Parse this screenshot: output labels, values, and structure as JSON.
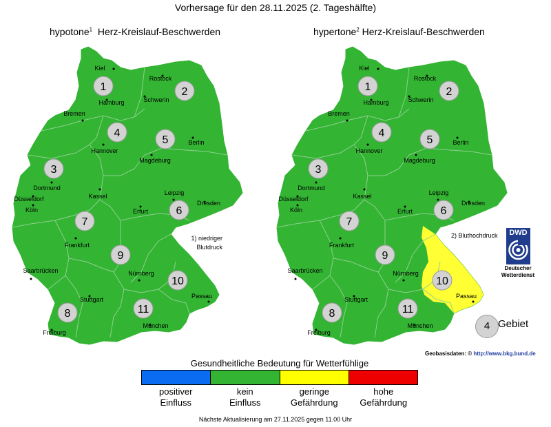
{
  "title": "Vorhersage für den 28.11.2025 (2. Tageshälfte)",
  "left_map": {
    "subtitle_main": "hypotone",
    "subtitle_sup": "1",
    "subtitle_rest": "Herz-Kreislauf-Beschwerden",
    "note_line1": "1) niedriger",
    "note_line2": "Blutdruck"
  },
  "right_map": {
    "subtitle_main": "hypertone",
    "subtitle_sup": "2",
    "subtitle_rest": "Herz-Kreislauf-Beschwerden",
    "note": "2) Bluthochdruck"
  },
  "regions": [
    "1",
    "2",
    "3",
    "4",
    "5",
    "6",
    "7",
    "8",
    "9",
    "10",
    "11"
  ],
  "cities": [
    "Kiel",
    "Rostock",
    "Hamburg",
    "Schwerin",
    "Bremen",
    "Hannover",
    "Berlin",
    "Magdeburg",
    "Dortmund",
    "Düsseldorf",
    "Köln",
    "Kassel",
    "Leipzig",
    "Dresden",
    "Erfurt",
    "Frankfurt",
    "Nürnberg",
    "Saarbrücken",
    "Stuttgart",
    "Passau",
    "Freiburg",
    "München"
  ],
  "dwd": {
    "logo": "DWD",
    "line1": "Deutscher",
    "line2": "Wetterdienst"
  },
  "gebiet": {
    "number": "4",
    "label": "Gebiet"
  },
  "geobasis": {
    "label": "Geobasisdaten: ©",
    "url": "http://www.bkg.bund.de"
  },
  "legend": {
    "title": "Gesundheitliche Bedeutung für Wetterfühlige",
    "items": [
      {
        "line1": "positiver",
        "line2": "Einfluss",
        "color": "#0a6cf0"
      },
      {
        "line1": "kein",
        "line2": "Einfluss",
        "color": "#33b433"
      },
      {
        "line1": "geringe",
        "line2": "Gefährdung",
        "color": "#ffff00"
      },
      {
        "line1": "hohe",
        "line2": "Gefährdung",
        "color": "#ee0000"
      }
    ]
  },
  "map_colors": {
    "green": "#33b433",
    "yellow": "#ffff33",
    "border": "#8fd08f"
  },
  "region_levels": {
    "left": [
      "kein",
      "kein",
      "kein",
      "kein",
      "kein",
      "kein",
      "kein",
      "kein",
      "kein",
      "kein",
      "kein"
    ],
    "right": [
      "kein",
      "kein",
      "kein",
      "kein",
      "kein",
      "kein",
      "kein",
      "kein",
      "kein",
      "geringe",
      "kein"
    ]
  },
  "footer": "Nächste Aktualisierung am 27.11.2025 gegen 11.00 Uhr"
}
